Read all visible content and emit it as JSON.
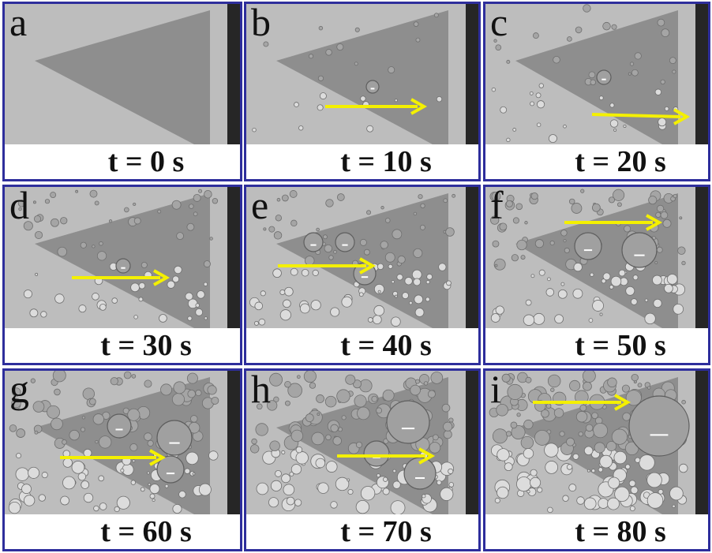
{
  "panels": [
    {
      "letter": "a",
      "time": "t = 0 s"
    },
    {
      "letter": "b",
      "time": "t = 10 s"
    },
    {
      "letter": "c",
      "time": "t = 20 s"
    },
    {
      "letter": "d",
      "time": "t = 30 s"
    },
    {
      "letter": "e",
      "time": "t = 40 s"
    },
    {
      "letter": "f",
      "time": "t = 50 s"
    },
    {
      "letter": "g",
      "time": "t = 60 s"
    },
    {
      "letter": "h",
      "time": "t = 70 s"
    },
    {
      "letter": "i",
      "time": "t = 80 s"
    }
  ]
}
